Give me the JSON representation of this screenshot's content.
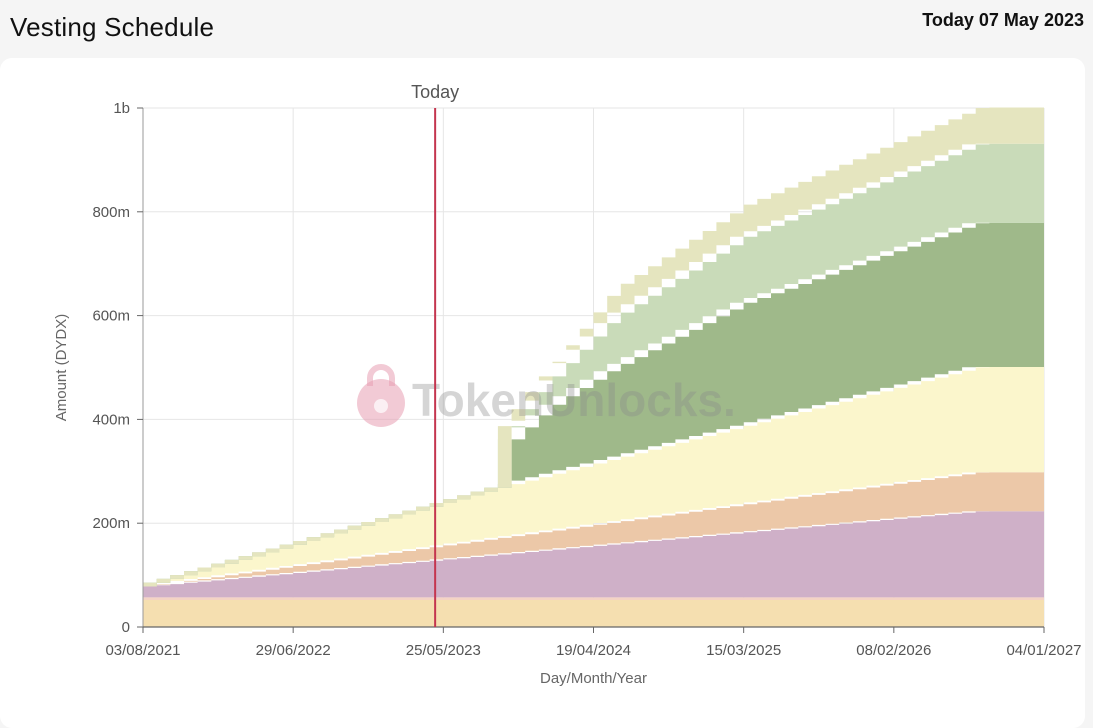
{
  "header": {
    "title": "Vesting Schedule",
    "date_label": "Today 07 May 2023"
  },
  "watermark": {
    "text": "TokenUnlocks."
  },
  "chart_data": {
    "type": "area",
    "stacked": true,
    "step": true,
    "xlabel": "Day/Month/Year",
    "ylabel": "Amount (DYDX)",
    "xlim": [
      "2021-08-03",
      "2027-01-04"
    ],
    "ylim": [
      0,
      1000000000
    ],
    "x_ticks": [
      "03/08/2021",
      "29/06/2022",
      "25/05/2023",
      "19/04/2024",
      "15/03/2025",
      "08/02/2026",
      "04/01/2027"
    ],
    "y_ticks": [
      {
        "value": 0,
        "label": "0"
      },
      {
        "value": 200000000,
        "label": "200m"
      },
      {
        "value": 400000000,
        "label": "400m"
      },
      {
        "value": 600000000,
        "label": "600m"
      },
      {
        "value": 800000000,
        "label": "800m"
      },
      {
        "value": 1000000000,
        "label": "1b"
      }
    ],
    "grid": true,
    "today_marker": {
      "x": "2023-05-07",
      "label": "Today"
    },
    "series": [
      {
        "color": "#f5dfb0",
        "points": [
          [
            "2021-08-03",
            52000000
          ],
          [
            "2027-01-04",
            52000000
          ]
        ]
      },
      {
        "color": "#f4d3c4",
        "points": [
          [
            "2021-08-03",
            5000000
          ],
          [
            "2027-01-04",
            5000000
          ]
        ]
      },
      {
        "color": "#cfb0c8",
        "points": [
          [
            "2021-08-03",
            21000000
          ],
          [
            "2026-08-10",
            166000000
          ],
          [
            "2027-01-04",
            166000000
          ]
        ]
      },
      {
        "color": "#ecc8a8",
        "points": [
          [
            "2021-08-03",
            0
          ],
          [
            "2026-08-10",
            75000000
          ],
          [
            "2027-01-04",
            75000000
          ]
        ]
      },
      {
        "color": "#fbf6cc",
        "points": [
          [
            "2021-08-03",
            0
          ],
          [
            "2023-10-20",
            100000000
          ],
          [
            "2026-08-10",
            203000000
          ],
          [
            "2027-01-04",
            203000000
          ]
        ]
      },
      {
        "color": "#9fb98a",
        "points": [
          [
            "2021-08-03",
            0
          ],
          [
            "2023-10-19",
            0
          ],
          [
            "2023-10-20",
            85000000
          ],
          [
            "2024-01-10",
            130000000
          ],
          [
            "2024-06-01",
            175000000
          ],
          [
            "2025-03-15",
            237000000
          ],
          [
            "2026-08-10",
            278000000
          ],
          [
            "2027-01-04",
            278000000
          ]
        ]
      },
      {
        "color": "#c9dbb9",
        "points": [
          [
            "2021-08-03",
            0
          ],
          [
            "2023-10-19",
            0
          ],
          [
            "2023-10-20",
            25000000
          ],
          [
            "2024-06-01",
            97000000
          ],
          [
            "2025-03-15",
            127000000
          ],
          [
            "2026-08-10",
            152000000
          ],
          [
            "2027-01-04",
            152000000
          ]
        ]
      },
      {
        "color": "#e5e5bf",
        "points": [
          [
            "2021-08-03",
            0
          ],
          [
            "2023-10-19",
            0
          ],
          [
            "2023-10-20",
            10000000
          ],
          [
            "2024-06-01",
            55000000
          ],
          [
            "2025-03-15",
            62000000
          ],
          [
            "2026-08-10",
            70000000
          ],
          [
            "2027-01-04",
            70000000
          ]
        ]
      }
    ]
  }
}
